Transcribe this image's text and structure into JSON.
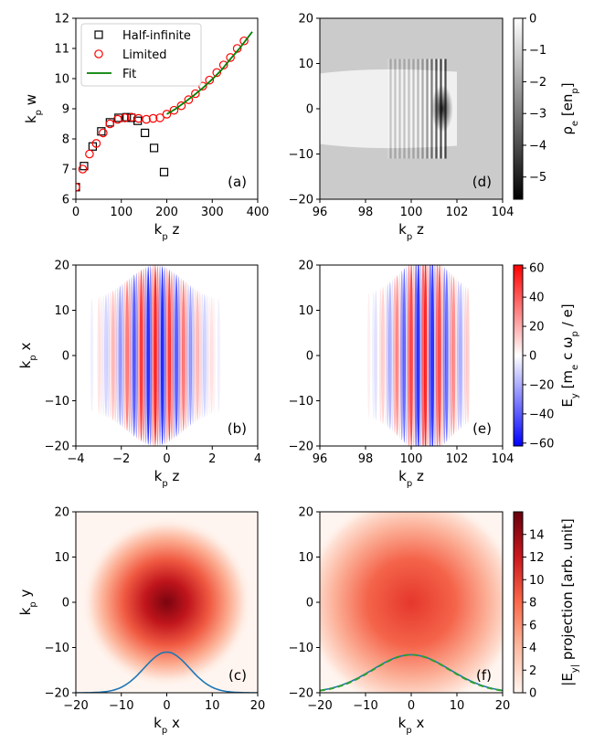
{
  "figure": {
    "colors": {
      "black": "#000000",
      "red": "#ff0000",
      "green": "#008000",
      "blue": "#1f77b4",
      "darkgreen": "#2ca02c"
    }
  },
  "chart_data": [
    {
      "id": "a",
      "type": "line",
      "panel_label": "(a)",
      "xlabel": "k_p z",
      "ylabel": "k_p w",
      "xlim": [
        0,
        400
      ],
      "ylim": [
        6,
        12
      ],
      "xticks": [
        "0",
        "100",
        "200",
        "300",
        "400"
      ],
      "yticks": [
        "6",
        "7",
        "8",
        "9",
        "10",
        "11",
        "12"
      ],
      "legend": {
        "placement": "top-left",
        "entries": [
          "Half-infinite",
          "Limited",
          "Fit"
        ]
      },
      "series": [
        {
          "name": "Half-infinite",
          "marker": "square",
          "color": "#000000",
          "x": [
            0,
            18,
            37,
            56,
            75,
            94,
            112,
            122,
            136,
            152,
            172,
            194
          ],
          "y": [
            6.4,
            7.1,
            7.75,
            8.25,
            8.55,
            8.7,
            8.72,
            8.7,
            8.6,
            8.2,
            7.7,
            6.9
          ]
        },
        {
          "name": "Limited",
          "marker": "circle",
          "color": "#ff0000",
          "x": [
            0,
            15,
            30,
            45,
            60,
            75,
            92,
            108,
            123,
            138,
            155,
            170,
            185,
            200,
            216,
            232,
            248,
            263,
            279,
            294,
            310,
            325,
            340,
            355,
            370
          ],
          "y": [
            6.4,
            7.0,
            7.5,
            7.85,
            8.2,
            8.5,
            8.65,
            8.7,
            8.72,
            8.68,
            8.65,
            8.68,
            8.7,
            8.82,
            8.95,
            9.1,
            9.3,
            9.5,
            9.75,
            9.95,
            10.2,
            10.45,
            10.7,
            11.0,
            11.25
          ]
        },
        {
          "name": "Fit",
          "style": "line",
          "color": "#008000",
          "x": [
            200,
            220,
            240,
            260,
            280,
            300,
            320,
            340,
            360,
            388
          ],
          "y": [
            8.82,
            9.0,
            9.22,
            9.45,
            9.7,
            9.98,
            10.28,
            10.65,
            11.0,
            11.55
          ]
        }
      ]
    },
    {
      "id": "d",
      "type": "heatmap",
      "panel_label": "(d)",
      "xlabel": "k_p z",
      "ylabel": "",
      "xlim": [
        96,
        104
      ],
      "ylim": [
        -20,
        20
      ],
      "xticks": [
        "96",
        "98",
        "100",
        "102",
        "104"
      ],
      "yticks": [
        "−20",
        "−10",
        "0",
        "10",
        "20"
      ],
      "colormap": "gray"
    },
    {
      "id": "cb1",
      "type": "colorbar",
      "label": "ρ_e [en_p]",
      "range": [
        -5.7,
        0
      ],
      "ticks": [
        "0",
        "−1",
        "−2",
        "−3",
        "−4",
        "−5"
      ]
    },
    {
      "id": "b",
      "type": "heatmap",
      "panel_label": "(b)",
      "xlabel": "k_p z",
      "ylabel": "k_p x",
      "xlim": [
        -4,
        4
      ],
      "ylim": [
        -20,
        20
      ],
      "xticks": [
        "−4",
        "−2",
        "0",
        "2",
        "4"
      ],
      "yticks": [
        "−20",
        "−10",
        "0",
        "10",
        "20"
      ],
      "colormap": "bwr"
    },
    {
      "id": "e",
      "type": "heatmap",
      "panel_label": "(e)",
      "xlabel": "k_p z",
      "ylabel": "",
      "xlim": [
        96,
        104
      ],
      "ylim": [
        -20,
        20
      ],
      "xticks": [
        "96",
        "98",
        "100",
        "102",
        "104"
      ],
      "yticks": [
        "−20",
        "−10",
        "0",
        "10",
        "20"
      ],
      "colormap": "bwr"
    },
    {
      "id": "cb2",
      "type": "colorbar",
      "label": "E_y [m_e c ω_p / e]",
      "range": [
        -62,
        62
      ],
      "ticks": [
        "60",
        "40",
        "20",
        "0",
        "−20",
        "−40",
        "−60"
      ]
    },
    {
      "id": "c",
      "type": "heatmap",
      "panel_label": "(c)",
      "xlabel": "k_p x",
      "ylabel": "k_p y",
      "xlim": [
        -20,
        20
      ],
      "ylim": [
        -20,
        20
      ],
      "xticks": [
        "−20",
        "−10",
        "0",
        "10",
        "20"
      ],
      "yticks": [
        "−20",
        "−10",
        "0",
        "10",
        "20"
      ],
      "colormap": "Reds",
      "profile": {
        "color": "#1f77b4",
        "peak_y": -11,
        "base_y": -20,
        "sigma": 5
      }
    },
    {
      "id": "f",
      "type": "heatmap",
      "panel_label": "(f)",
      "xlabel": "k_p x",
      "ylabel": "",
      "xlim": [
        -20,
        20
      ],
      "ylim": [
        -20,
        20
      ],
      "xticks": [
        "−20",
        "−10",
        "0",
        "10",
        "20"
      ],
      "yticks": [
        "−20",
        "−10",
        "0",
        "10",
        "20"
      ],
      "colormap": "Reds",
      "profile": {
        "color": "#1f77b4",
        "peak_y": -11.6,
        "base_y": -20,
        "sigma": 8.5,
        "fit_color": "#2ca02c"
      }
    },
    {
      "id": "cb3",
      "type": "colorbar",
      "label": "|E_y| projection [arb. unit]",
      "range": [
        0,
        16
      ],
      "ticks": [
        "14",
        "12",
        "10",
        "8",
        "6",
        "4",
        "2",
        "0"
      ]
    }
  ]
}
